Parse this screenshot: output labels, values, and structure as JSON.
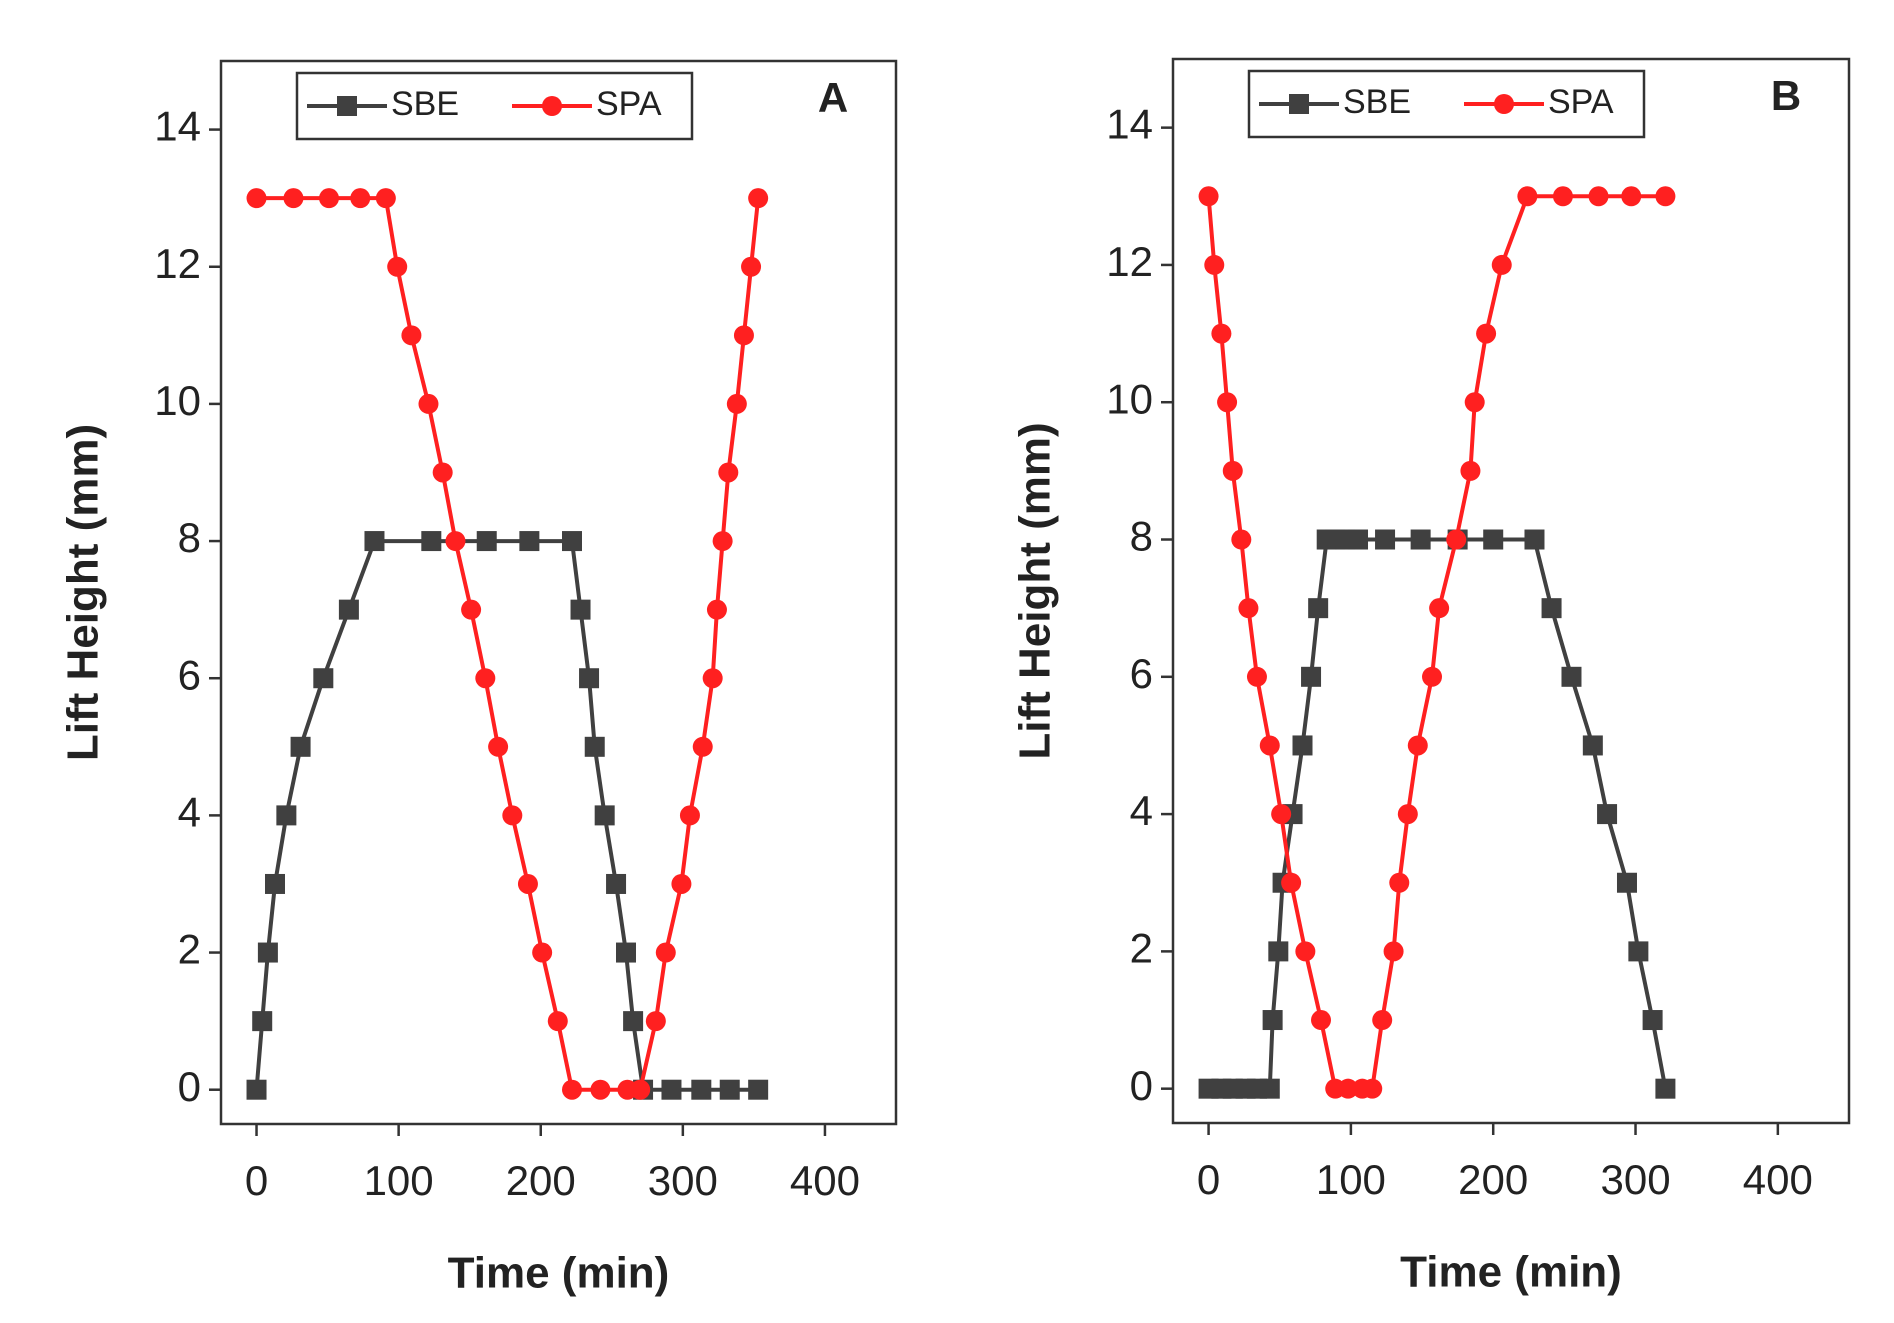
{
  "chart_data": [
    {
      "type": "line",
      "annotation": "A",
      "xlabel": "Time (min)",
      "ylabel": "Lift Height (mm)",
      "xlim": [
        -25,
        450
      ],
      "ylim": [
        -0.5,
        15
      ],
      "xticks": [
        0,
        100,
        200,
        300,
        400
      ],
      "yticks": [
        0,
        2,
        4,
        6,
        8,
        10,
        12,
        14
      ],
      "legend": "top",
      "series": [
        {
          "name": "SBE",
          "color": "#404040",
          "marker": "square",
          "x": [
            0,
            4,
            8,
            13,
            21,
            31,
            47,
            65,
            83,
            123,
            162,
            192,
            222,
            228,
            234,
            238,
            245,
            253,
            260,
            265,
            272,
            292,
            313,
            333,
            353
          ],
          "values": [
            0,
            1,
            2,
            3,
            4,
            5,
            6,
            7,
            8,
            8,
            8,
            8,
            8,
            7,
            6,
            5,
            4,
            3,
            2,
            1,
            0,
            0,
            0,
            0,
            0
          ]
        },
        {
          "name": "SPA",
          "color": "#ff2020",
          "marker": "circle",
          "x": [
            0,
            26,
            51,
            73,
            91,
            99,
            109,
            121,
            131,
            140,
            151,
            161,
            170,
            180,
            191,
            201,
            212,
            222,
            242,
            261,
            270,
            281,
            288,
            299,
            305,
            314,
            321,
            324,
            328,
            332,
            338,
            343,
            348,
            353
          ],
          "values": [
            13,
            13,
            13,
            13,
            13,
            12,
            11,
            10,
            9,
            8,
            7,
            6,
            5,
            4,
            3,
            2,
            1,
            0,
            0,
            0,
            0,
            1,
            2,
            3,
            4,
            5,
            6,
            7,
            8,
            9,
            10,
            11,
            12,
            13
          ]
        }
      ]
    },
    {
      "type": "line",
      "annotation": "B",
      "xlabel": "Time (min)",
      "ylabel": "Lift Height (mm)",
      "xlim": [
        -25,
        450
      ],
      "ylim": [
        -0.5,
        15
      ],
      "xticks": [
        0,
        100,
        200,
        300,
        400
      ],
      "yticks": [
        0,
        2,
        4,
        6,
        8,
        10,
        12,
        14
      ],
      "legend": "top",
      "series": [
        {
          "name": "SBE",
          "color": "#404040",
          "marker": "square",
          "x": [
            0,
            9,
            17,
            26,
            34,
            43,
            45,
            49,
            52,
            59,
            66,
            72,
            77,
            83,
            89,
            96,
            105,
            124,
            149,
            175,
            200,
            229,
            241,
            255,
            270,
            280,
            294,
            302,
            312,
            321
          ],
          "values": [
            0,
            0,
            0,
            0,
            0,
            0,
            1,
            2,
            3,
            4,
            5,
            6,
            7,
            8,
            8,
            8,
            8,
            8,
            8,
            8,
            8,
            8,
            7,
            6,
            5,
            4,
            3,
            2,
            1,
            0
          ]
        },
        {
          "name": "SPA",
          "color": "#ff2020",
          "marker": "circle",
          "x": [
            0,
            4,
            9,
            13,
            17,
            23,
            28,
            34,
            43,
            51,
            58,
            68,
            79,
            89,
            98,
            108,
            115,
            122,
            130,
            134,
            140,
            147,
            157,
            162,
            174,
            184,
            187,
            195,
            206,
            224,
            249,
            274,
            297,
            321
          ],
          "values": [
            13,
            12,
            11,
            10,
            9,
            8,
            7,
            6,
            5,
            4,
            3,
            2,
            1,
            0,
            0,
            0,
            0,
            1,
            2,
            3,
            4,
            5,
            6,
            7,
            8,
            9,
            10,
            11,
            12,
            13,
            13,
            13,
            13,
            13
          ]
        }
      ]
    }
  ]
}
